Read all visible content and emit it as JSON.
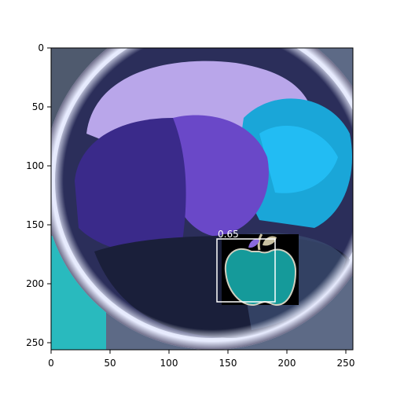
{
  "figure": {
    "x_ticks": [
      "0",
      "50",
      "100",
      "150",
      "200",
      "250"
    ],
    "y_ticks": [
      "0",
      "50",
      "100",
      "150",
      "200",
      "250"
    ]
  },
  "image": {
    "content": "top-down inverted-color photo of a bowl with purple, blue and dark textured foods with an apple icon overlay",
    "palette": {
      "bowl_rim": "#c9d2e8",
      "purple_left": "#3a2a8a",
      "purple_center": "#6a48c8",
      "lavender_top": "#b9a6ea",
      "cyan_right": "#1aa6d8",
      "dark_bottom": "#1a1f3a",
      "teal_corner": "#20c8c8",
      "apple_fill": "#159a9a",
      "apple_bg": "#000000"
    }
  },
  "detection": {
    "score": "0.65",
    "box_color": "#ffffff"
  }
}
